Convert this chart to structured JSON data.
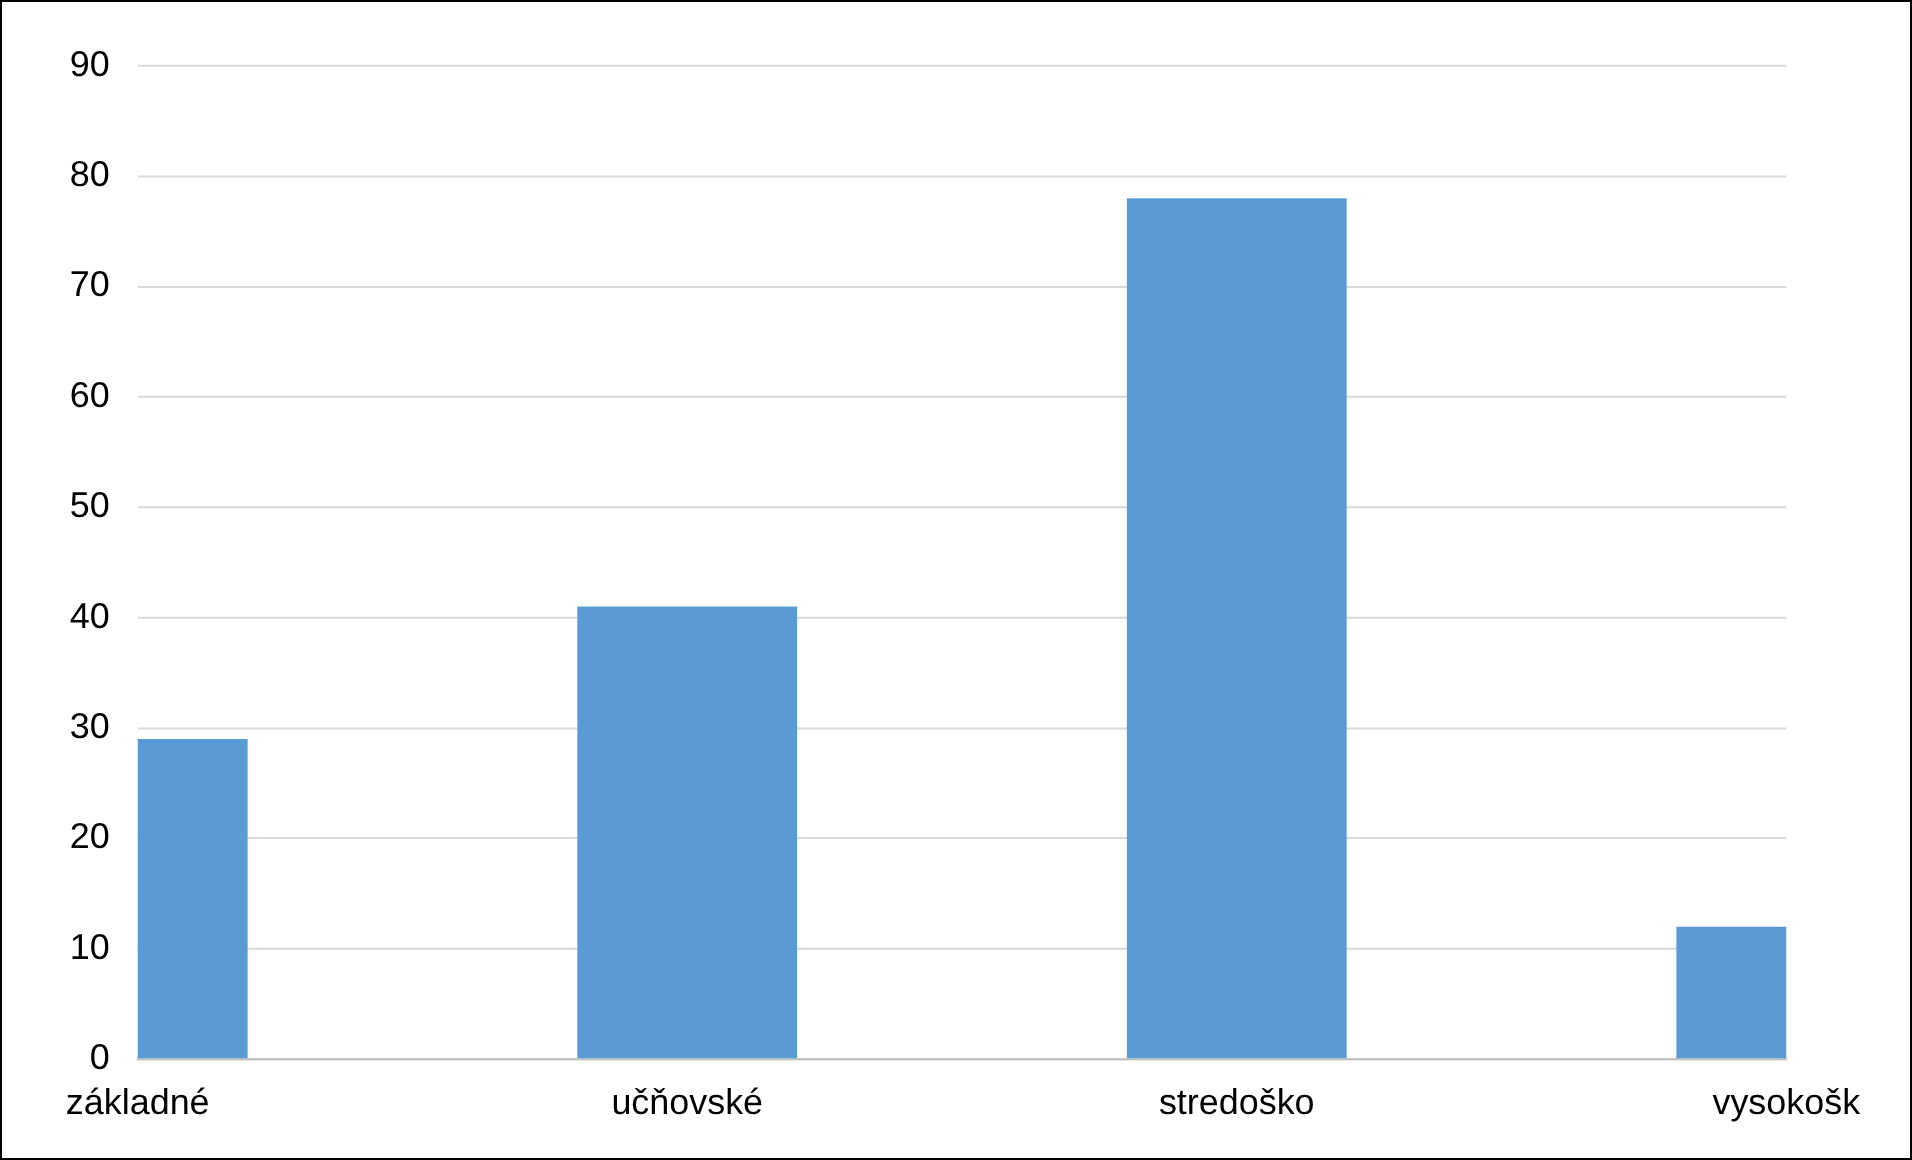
{
  "chart_data": {
    "type": "bar",
    "categories": [
      "základné",
      "učňovské",
      "stredoško",
      "vysokošk"
    ],
    "values": [
      29,
      41,
      78,
      12
    ],
    "color": "#5b9bd5",
    "ylim": [
      0,
      90
    ],
    "yticks": [
      0,
      10,
      20,
      30,
      40,
      50,
      60,
      70,
      80,
      90
    ],
    "grid": "y",
    "legend": false
  }
}
